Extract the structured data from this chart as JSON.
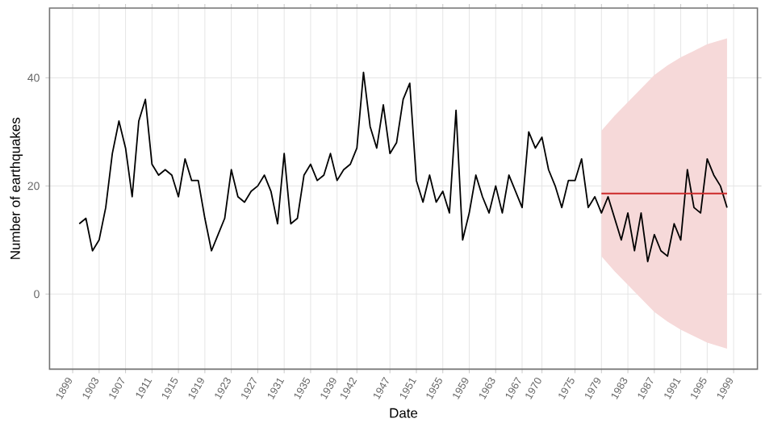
{
  "chart_data": {
    "type": "line",
    "xlabel": "Date",
    "ylabel": "Number of earthquakes",
    "x": [
      1900,
      1901,
      1902,
      1903,
      1904,
      1905,
      1906,
      1907,
      1908,
      1909,
      1910,
      1911,
      1912,
      1913,
      1914,
      1915,
      1916,
      1917,
      1918,
      1919,
      1920,
      1921,
      1922,
      1923,
      1924,
      1925,
      1926,
      1927,
      1928,
      1929,
      1930,
      1931,
      1932,
      1933,
      1934,
      1935,
      1936,
      1937,
      1938,
      1939,
      1940,
      1941,
      1942,
      1943,
      1944,
      1945,
      1946,
      1947,
      1948,
      1949,
      1950,
      1951,
      1952,
      1953,
      1954,
      1955,
      1956,
      1957,
      1958,
      1959,
      1960,
      1961,
      1962,
      1963,
      1964,
      1965,
      1966,
      1967,
      1968,
      1969,
      1970,
      1971,
      1972,
      1973,
      1974,
      1975,
      1976,
      1977,
      1978,
      1979,
      1980,
      1981,
      1982,
      1983,
      1984,
      1985,
      1986,
      1987,
      1988,
      1989,
      1990,
      1991,
      1992,
      1993,
      1994,
      1995,
      1996,
      1997,
      1998
    ],
    "series": [
      {
        "color": "#000000",
        "values": [
          13,
          14,
          8,
          10,
          16,
          26,
          32,
          27,
          18,
          32,
          36,
          24,
          22,
          23,
          22,
          18,
          25,
          21,
          21,
          14,
          8,
          11,
          14,
          23,
          18,
          17,
          19,
          20,
          22,
          19,
          13,
          26,
          13,
          14,
          22,
          24,
          21,
          22,
          26,
          21,
          23,
          24,
          27,
          41,
          31,
          27,
          35,
          26,
          28,
          36,
          39,
          21,
          17,
          22,
          17,
          19,
          15,
          34,
          10,
          15,
          22,
          18,
          15,
          20,
          15,
          22,
          19,
          16,
          30,
          27,
          29,
          23,
          20,
          16,
          21,
          21,
          25,
          16,
          18,
          15,
          18,
          14,
          10,
          15,
          8,
          15,
          6,
          11,
          8,
          7,
          13,
          10,
          23,
          16,
          15,
          25,
          22,
          20,
          16
        ]
      },
      {
        "color": "#cc2a2a",
        "x": [
          1979,
          1981,
          1983,
          1985,
          1987,
          1989,
          1991,
          1993,
          1995,
          1998
        ],
        "values": [
          18.6,
          18.6,
          18.6,
          18.6,
          18.6,
          18.6,
          18.6,
          18.6,
          18.6,
          18.6
        ],
        "lower": [
          7.0,
          4.2,
          1.7,
          -0.8,
          -3.3,
          -5.1,
          -6.6,
          -7.8,
          -9.0,
          -10.1
        ],
        "upper": [
          30.2,
          33.0,
          35.5,
          38.0,
          40.5,
          42.3,
          43.8,
          45.0,
          46.2,
          47.3
        ]
      }
    ],
    "xlim": [
      1895.5,
      2002.6
    ],
    "ylim": [
      -13.9,
      52.9
    ],
    "xticks": [
      1899,
      1903,
      1907,
      1911,
      1915,
      1919,
      1923,
      1927,
      1931,
      1935,
      1939,
      1942,
      1947,
      1951,
      1955,
      1959,
      1963,
      1967,
      1970,
      1975,
      1979,
      1983,
      1987,
      1991,
      1995,
      1999
    ],
    "yticks": [
      0,
      20,
      40
    ],
    "grid": true,
    "line_style": "solid",
    "marker": "none"
  }
}
